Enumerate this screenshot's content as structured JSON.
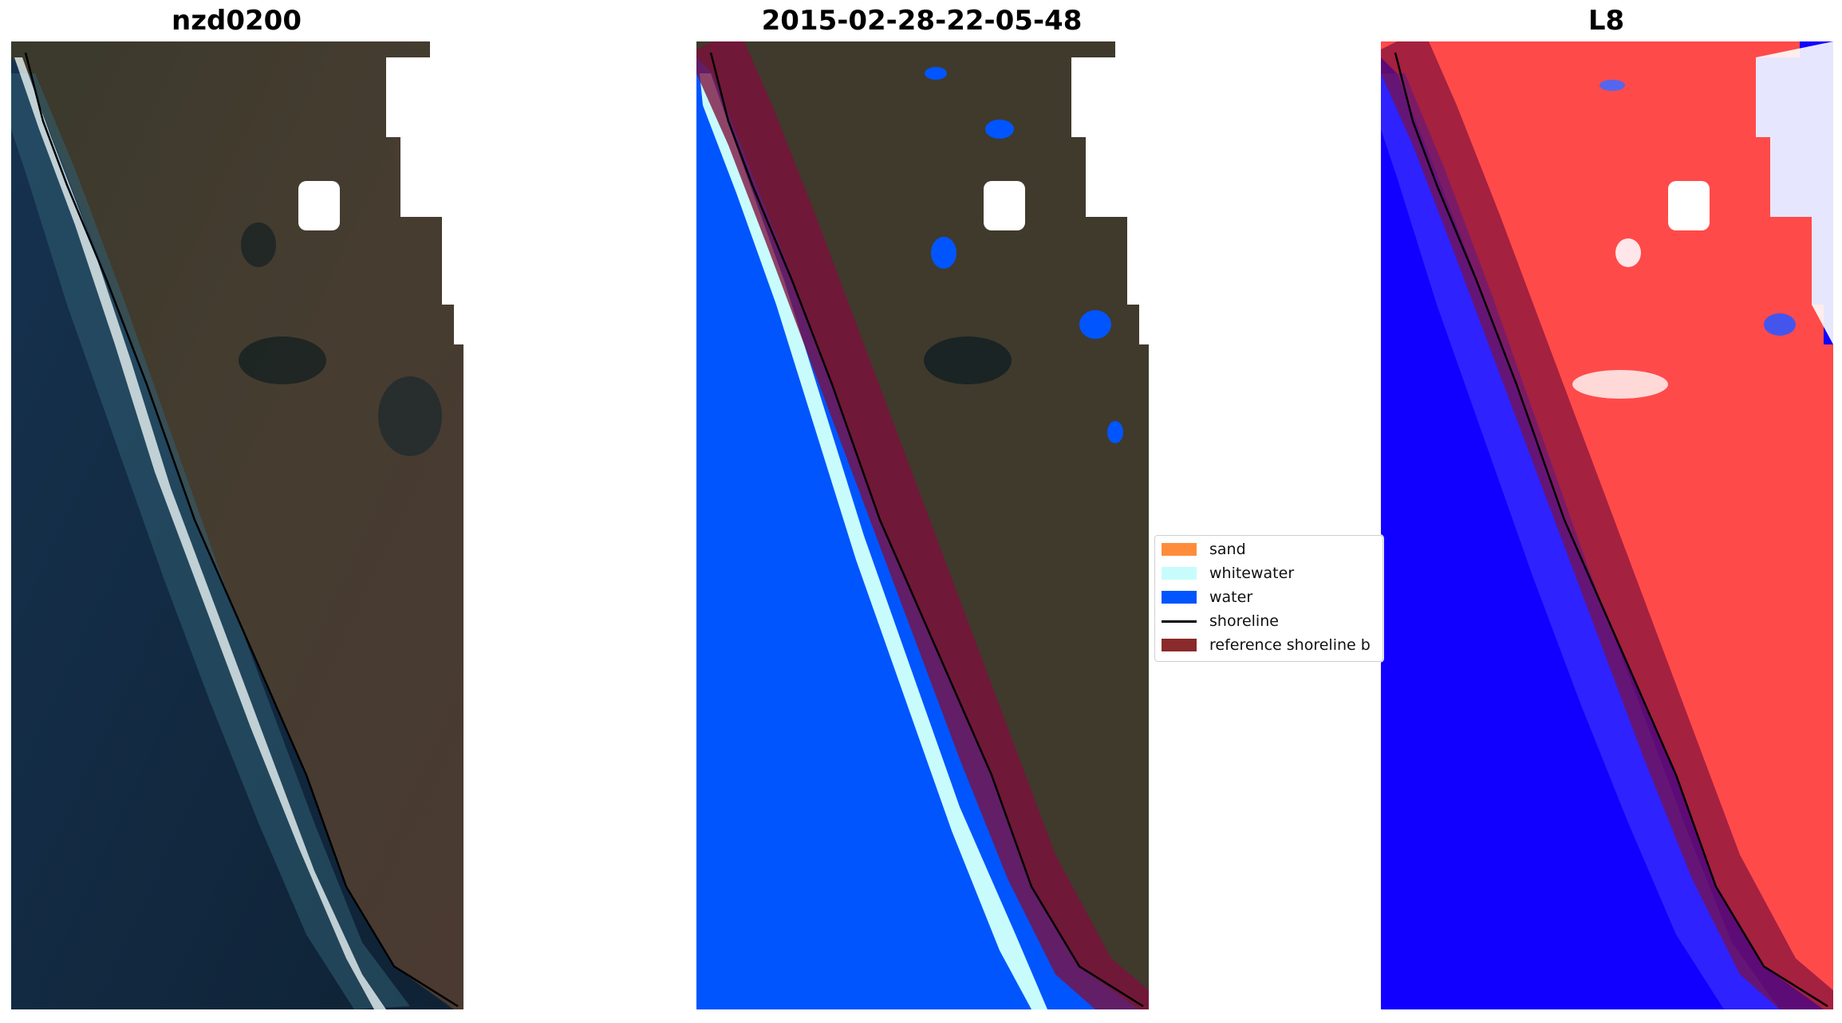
{
  "panels": [
    {
      "title": "nzd0200",
      "content": "RGB satellite image of coastline with detected shoreline"
    },
    {
      "title": "2015-02-28-22-05-48",
      "content": "classified image with reference shoreline buffer"
    },
    {
      "title": "L8",
      "content": "water index image with reference shoreline buffer"
    }
  ],
  "legend": {
    "items": [
      {
        "label": "sand",
        "color": "#ff8c3a",
        "kind": "patch"
      },
      {
        "label": "whitewater",
        "color": "#c8fcfc",
        "kind": "patch"
      },
      {
        "label": "water",
        "color": "#0055ff",
        "kind": "patch"
      },
      {
        "label": "shoreline",
        "color": "#000000",
        "kind": "line"
      },
      {
        "label": "reference shoreline b",
        "color": "#8b2a2a",
        "kind": "patch"
      }
    ]
  },
  "colors": {
    "ocean": "#13293e",
    "land": "#3f3a2c",
    "water_class": "#0055ff",
    "buffer": "#7d0f3c",
    "index_water": "#1100ff",
    "index_land": "#ff4a4a"
  }
}
